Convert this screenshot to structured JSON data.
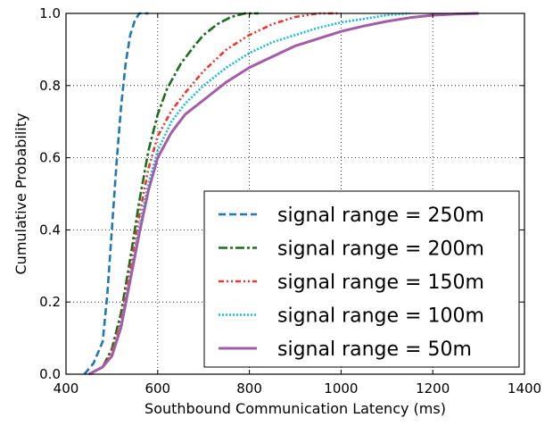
{
  "chart_data": {
    "type": "line",
    "title": "",
    "xlabel": "Southbound Communication Latency (ms)",
    "ylabel": "Cumulative Probability",
    "xlim": [
      400,
      1400
    ],
    "ylim": [
      0.0,
      1.0
    ],
    "x_ticks": [
      400,
      600,
      800,
      1000,
      1200,
      1400
    ],
    "y_ticks": [
      0.0,
      0.2,
      0.4,
      0.6,
      0.8,
      1.0
    ],
    "x_tick_labels": [
      "400",
      "600",
      "800",
      "1000",
      "1200",
      "1400"
    ],
    "y_tick_labels": [
      "0.0",
      "0.2",
      "0.4",
      "0.6",
      "0.8",
      "1.0"
    ],
    "grid": true,
    "grid_style": "dotted",
    "legend_position": "lower-right",
    "series": [
      {
        "name": "signal range = 250m",
        "color": "#1f77b4",
        "line_style": "dashed",
        "x": [
          440,
          460,
          480,
          490,
          500,
          510,
          520,
          530,
          540,
          550,
          560,
          570,
          580
        ],
        "y": [
          0.0,
          0.03,
          0.09,
          0.22,
          0.4,
          0.58,
          0.74,
          0.86,
          0.94,
          0.98,
          1.0,
          1.0,
          1.0
        ]
      },
      {
        "name": "signal range = 200m",
        "color": "#1b6e1b",
        "line_style": "dash-dot",
        "x": [
          450,
          480,
          500,
          520,
          540,
          560,
          580,
          600,
          620,
          650,
          680,
          700,
          730,
          760,
          790,
          820
        ],
        "y": [
          0.0,
          0.02,
          0.07,
          0.17,
          0.32,
          0.48,
          0.62,
          0.72,
          0.79,
          0.86,
          0.91,
          0.94,
          0.97,
          0.99,
          1.0,
          1.0
        ]
      },
      {
        "name": "signal range = 150m",
        "color": "#e8372f",
        "line_style": "dash-dot-dot",
        "x": [
          450,
          480,
          500,
          520,
          540,
          560,
          580,
          600,
          630,
          660,
          700,
          750,
          800,
          850,
          900,
          950,
          1000
        ],
        "y": [
          0.0,
          0.02,
          0.06,
          0.15,
          0.29,
          0.44,
          0.57,
          0.66,
          0.73,
          0.78,
          0.84,
          0.9,
          0.94,
          0.97,
          0.99,
          1.0,
          1.0
        ]
      },
      {
        "name": "signal range = 100m",
        "color": "#17becf",
        "line_style": "dotted",
        "x": [
          450,
          480,
          500,
          520,
          540,
          560,
          580,
          600,
          630,
          660,
          700,
          750,
          800,
          850,
          900,
          950,
          1000,
          1050,
          1100,
          1150
        ],
        "y": [
          0.0,
          0.02,
          0.05,
          0.14,
          0.27,
          0.41,
          0.53,
          0.62,
          0.7,
          0.75,
          0.8,
          0.85,
          0.89,
          0.92,
          0.94,
          0.96,
          0.975,
          0.985,
          0.995,
          1.0
        ]
      },
      {
        "name": "signal range = 50m",
        "color": "#a35ca8",
        "line_style": "solid",
        "x": [
          450,
          480,
          500,
          520,
          540,
          560,
          580,
          600,
          630,
          660,
          700,
          750,
          800,
          850,
          900,
          950,
          1000,
          1050,
          1100,
          1150,
          1200,
          1250,
          1300
        ],
        "y": [
          0.0,
          0.02,
          0.05,
          0.13,
          0.26,
          0.39,
          0.51,
          0.6,
          0.67,
          0.72,
          0.76,
          0.81,
          0.85,
          0.88,
          0.91,
          0.93,
          0.95,
          0.965,
          0.978,
          0.988,
          0.995,
          0.998,
          1.0
        ]
      }
    ]
  }
}
